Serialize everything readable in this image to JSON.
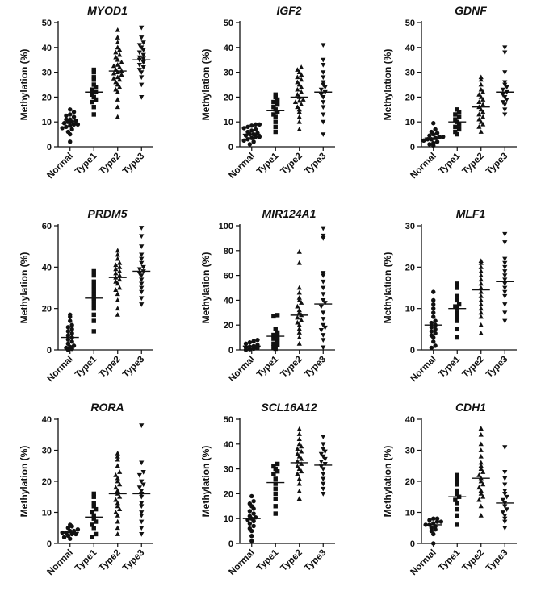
{
  "figure": {
    "categories": [
      "Normal",
      "Type1",
      "Type2",
      "Type3"
    ],
    "ylabel": "Methylation (%)"
  },
  "chart_data": [
    {
      "type": "scatter",
      "title": "MYOD1",
      "ylabel": "Methylation (%)",
      "categories": [
        "Normal",
        "Type1",
        "Type2",
        "Type3"
      ],
      "ylim": [
        0,
        50
      ],
      "yticks": [
        0,
        10,
        20,
        30,
        40,
        50
      ],
      "markers": [
        "circle",
        "square",
        "triangle-up",
        "triangle-down"
      ],
      "means": [
        9.5,
        22,
        30.5,
        35
      ],
      "series": [
        {
          "name": "Normal",
          "values": [
            2,
            5,
            6,
            7,
            7.5,
            8,
            8.5,
            9,
            9,
            9.5,
            10,
            10,
            10.5,
            11,
            11,
            12,
            12.5,
            13,
            14,
            15
          ]
        },
        {
          "name": "Type1",
          "values": [
            13,
            16,
            18,
            19,
            20,
            21,
            22,
            23,
            24,
            25,
            27,
            28,
            30,
            31
          ]
        },
        {
          "name": "Type2",
          "values": [
            12,
            16,
            19,
            22,
            23,
            24,
            25,
            26,
            27,
            27.5,
            28,
            29,
            29.5,
            30,
            30.5,
            31,
            32,
            32.5,
            33,
            34,
            35,
            36,
            37,
            38,
            39,
            40,
            42,
            44,
            47
          ]
        },
        {
          "name": "Type3",
          "values": [
            20,
            25,
            28,
            30,
            31,
            32,
            33,
            34,
            35,
            35.5,
            36,
            37,
            38,
            39,
            40,
            41,
            42,
            44,
            48
          ]
        }
      ]
    },
    {
      "type": "scatter",
      "title": "IGF2",
      "ylabel": "Methylation (%)",
      "categories": [
        "Normal",
        "Type1",
        "Type2",
        "Type3"
      ],
      "ylim": [
        0,
        50
      ],
      "yticks": [
        0,
        10,
        20,
        30,
        40,
        50
      ],
      "markers": [
        "circle",
        "square",
        "triangle-up",
        "triangle-down"
      ],
      "means": [
        5,
        14.5,
        20,
        22
      ],
      "series": [
        {
          "name": "Normal",
          "values": [
            1,
            2,
            2.5,
            3,
            3.5,
            4,
            4,
            4.5,
            5,
            5,
            5.5,
            6,
            6.5,
            7,
            7.5,
            8,
            8.5,
            9,
            9
          ]
        },
        {
          "name": "Type1",
          "values": [
            6,
            8,
            10,
            12,
            13,
            14,
            15,
            16,
            17,
            18,
            19,
            20,
            21
          ]
        },
        {
          "name": "Type2",
          "values": [
            7,
            10,
            12,
            14,
            15,
            16,
            17,
            18,
            18.5,
            19,
            20,
            21,
            22,
            23,
            24,
            25,
            26,
            27,
            28,
            29,
            30,
            31,
            32
          ]
        },
        {
          "name": "Type3",
          "values": [
            5,
            10,
            13,
            16,
            18,
            20,
            21,
            22,
            23,
            24,
            25,
            26,
            28,
            30,
            33,
            35,
            41
          ]
        }
      ]
    },
    {
      "type": "scatter",
      "title": "GDNF",
      "ylabel": "Methylation (%)",
      "categories": [
        "Normal",
        "Type1",
        "Type2",
        "Type3"
      ],
      "ylim": [
        0,
        50
      ],
      "yticks": [
        0,
        10,
        20,
        30,
        40,
        50
      ],
      "markers": [
        "circle",
        "square",
        "triangle-up",
        "triangle-down"
      ],
      "means": [
        3.5,
        10,
        16,
        22
      ],
      "series": [
        {
          "name": "Normal",
          "values": [
            0.5,
            1,
            1.5,
            2,
            2.5,
            3,
            3,
            3.5,
            4,
            4,
            4.5,
            5,
            5.5,
            6,
            7,
            9.5
          ]
        },
        {
          "name": "Type1",
          "values": [
            5,
            6,
            7,
            8,
            9,
            10,
            11,
            12,
            13,
            14,
            15
          ]
        },
        {
          "name": "Type2",
          "values": [
            6,
            8,
            9,
            10,
            11,
            12,
            13,
            14,
            15,
            16,
            17,
            18,
            19,
            20,
            21,
            22,
            23,
            25,
            27,
            28
          ]
        },
        {
          "name": "Type3",
          "values": [
            13,
            15,
            17,
            18,
            19,
            20,
            21,
            22,
            23,
            24,
            25,
            26,
            30,
            38,
            40
          ]
        }
      ]
    },
    {
      "type": "scatter",
      "title": "PRDM5",
      "ylabel": "Methylation (%)",
      "categories": [
        "Normal",
        "Type1",
        "Type2",
        "Type3"
      ],
      "ylim": [
        0,
        60
      ],
      "yticks": [
        0,
        20,
        40,
        60
      ],
      "markers": [
        "circle",
        "square",
        "triangle-up",
        "triangle-down"
      ],
      "means": [
        6,
        25,
        35,
        38
      ],
      "series": [
        {
          "name": "Normal",
          "values": [
            0,
            0.5,
            1,
            1.5,
            2,
            3,
            4,
            5,
            6,
            7,
            8,
            9,
            10,
            11,
            12,
            14,
            16,
            17
          ]
        },
        {
          "name": "Type1",
          "values": [
            9,
            14,
            17,
            20,
            22,
            24,
            25,
            27,
            29,
            31,
            33,
            36,
            38
          ]
        },
        {
          "name": "Type2",
          "values": [
            17,
            20,
            24,
            27,
            29,
            30,
            32,
            33,
            34,
            35,
            36,
            37,
            38,
            39,
            40,
            41,
            42,
            44,
            46,
            48
          ]
        },
        {
          "name": "Type3",
          "values": [
            22,
            25,
            28,
            30,
            32,
            34,
            36,
            37,
            38,
            39,
            40,
            42,
            44,
            46,
            50,
            55,
            59
          ]
        }
      ]
    },
    {
      "type": "scatter",
      "title": "MIR124A1",
      "ylabel": "Methylation (%)",
      "categories": [
        "Normal",
        "Type1",
        "Type2",
        "Type3"
      ],
      "ylim": [
        0,
        100
      ],
      "yticks": [
        0,
        20,
        40,
        60,
        80,
        100
      ],
      "markers": [
        "circle",
        "square",
        "triangle-up",
        "triangle-down"
      ],
      "means": [
        3,
        11,
        28,
        37
      ],
      "series": [
        {
          "name": "Normal",
          "values": [
            0,
            0.5,
            1,
            1.5,
            2,
            2.5,
            3,
            4,
            5,
            6,
            7,
            8
          ]
        },
        {
          "name": "Type1",
          "values": [
            1,
            2,
            4,
            5,
            7,
            9,
            10,
            12,
            14,
            17,
            27,
            28
          ]
        },
        {
          "name": "Type2",
          "values": [
            5,
            10,
            14,
            17,
            20,
            22,
            24,
            26,
            28,
            30,
            32,
            35,
            38,
            40,
            42,
            46,
            50,
            70,
            79
          ]
        },
        {
          "name": "Type3",
          "values": [
            2,
            8,
            12,
            16,
            18,
            20,
            25,
            30,
            35,
            38,
            40,
            45,
            50,
            55,
            60,
            62,
            90,
            92,
            98
          ]
        }
      ]
    },
    {
      "type": "scatter",
      "title": "MLF1",
      "ylabel": "Methylation (%)",
      "categories": [
        "Normal",
        "Type1",
        "Type2",
        "Type3"
      ],
      "ylim": [
        0,
        30
      ],
      "yticks": [
        0,
        10,
        20,
        30
      ],
      "markers": [
        "circle",
        "square",
        "triangle-up",
        "triangle-down"
      ],
      "means": [
        6,
        10,
        14.5,
        16.5
      ],
      "series": [
        {
          "name": "Normal",
          "values": [
            0.5,
            1,
            2,
            3,
            3.5,
            4,
            4.5,
            5,
            5.5,
            6,
            6.5,
            7,
            8,
            9,
            10,
            11,
            12,
            14
          ]
        },
        {
          "name": "Type1",
          "values": [
            3,
            5,
            7,
            8,
            9,
            10,
            10.5,
            11,
            12,
            13,
            15,
            16
          ]
        },
        {
          "name": "Type2",
          "values": [
            4,
            6,
            8,
            9,
            10,
            11,
            12,
            13,
            14,
            15,
            16,
            17,
            18,
            19,
            20,
            21,
            21.5
          ]
        },
        {
          "name": "Type3",
          "values": [
            7,
            9,
            11,
            13,
            14,
            15,
            16,
            17,
            18,
            19,
            20,
            21,
            22,
            26,
            28
          ]
        }
      ]
    },
    {
      "type": "scatter",
      "title": "RORA",
      "ylabel": "Methylation (%)",
      "categories": [
        "Normal",
        "Type1",
        "Type2",
        "Type3"
      ],
      "ylim": [
        0,
        40
      ],
      "yticks": [
        0,
        10,
        20,
        30,
        40
      ],
      "markers": [
        "circle",
        "square",
        "triangle-up",
        "triangle-down"
      ],
      "means": [
        3.5,
        8.5,
        16,
        16
      ],
      "series": [
        {
          "name": "Normal",
          "values": [
            1.5,
            2,
            2.5,
            3,
            3,
            3.5,
            3.5,
            4,
            4,
            4.5,
            5,
            5.5,
            6
          ]
        },
        {
          "name": "Type1",
          "values": [
            2,
            3,
            5,
            6,
            7,
            8,
            9,
            10,
            11,
            12,
            13,
            15,
            16
          ]
        },
        {
          "name": "Type2",
          "values": [
            3,
            5,
            7,
            9,
            10,
            11,
            12,
            13,
            14,
            15,
            16,
            17,
            18,
            19,
            20,
            21,
            22,
            23,
            25,
            27,
            28,
            29
          ]
        },
        {
          "name": "Type3",
          "values": [
            3,
            5,
            7,
            9,
            10,
            12,
            13,
            15,
            16,
            17,
            18,
            19,
            20,
            22,
            23,
            26,
            38
          ]
        }
      ]
    },
    {
      "type": "scatter",
      "title": "SCL16A12",
      "ylabel": "Methylation (%)",
      "categories": [
        "Normal",
        "Type1",
        "Type2",
        "Type3"
      ],
      "ylim": [
        0,
        50
      ],
      "yticks": [
        0,
        10,
        20,
        30,
        40,
        50
      ],
      "markers": [
        "circle",
        "square",
        "triangle-up",
        "triangle-down"
      ],
      "means": [
        10,
        24.5,
        32.5,
        31.5
      ],
      "series": [
        {
          "name": "Normal",
          "values": [
            1,
            3,
            5,
            6,
            7,
            8,
            9,
            9.5,
            10,
            10.5,
            11,
            12,
            13,
            14,
            15,
            16,
            17,
            19
          ]
        },
        {
          "name": "Type1",
          "values": [
            12,
            15,
            18,
            20,
            22,
            24,
            26,
            28,
            29,
            30,
            31,
            32
          ]
        },
        {
          "name": "Type2",
          "values": [
            18,
            21,
            24,
            26,
            28,
            29,
            30,
            31,
            32,
            33,
            34,
            35,
            36,
            37,
            38,
            39,
            40,
            42,
            44,
            46
          ]
        },
        {
          "name": "Type3",
          "values": [
            20,
            22,
            24,
            26,
            28,
            30,
            31,
            32,
            33,
            34,
            35,
            36,
            37,
            38,
            40,
            43
          ]
        }
      ]
    },
    {
      "type": "scatter",
      "title": "CDH1",
      "ylabel": "Methylation (%)",
      "categories": [
        "Normal",
        "Type1",
        "Type2",
        "Type3"
      ],
      "ylim": [
        0,
        40
      ],
      "yticks": [
        0,
        10,
        20,
        30,
        40
      ],
      "markers": [
        "circle",
        "square",
        "triangle-up",
        "triangle-down"
      ],
      "means": [
        6,
        15,
        21,
        13
      ],
      "series": [
        {
          "name": "Normal",
          "values": [
            0,
            3,
            4,
            4.5,
            5,
            5.5,
            6,
            6,
            6.5,
            7,
            7,
            7.5,
            8,
            8
          ]
        },
        {
          "name": "Type1",
          "values": [
            6,
            9,
            11,
            13,
            14,
            15,
            16,
            17,
            19,
            20,
            21,
            22
          ]
        },
        {
          "name": "Type2",
          "values": [
            9,
            12,
            14,
            15,
            16,
            17,
            18,
            19,
            20,
            21,
            22,
            23,
            24,
            25,
            26,
            28,
            30,
            32,
            35,
            37
          ]
        },
        {
          "name": "Type3",
          "values": [
            5,
            7,
            8,
            9,
            10,
            11,
            12,
            13,
            14,
            15,
            16,
            17,
            19,
            21,
            23,
            31
          ]
        }
      ]
    }
  ]
}
